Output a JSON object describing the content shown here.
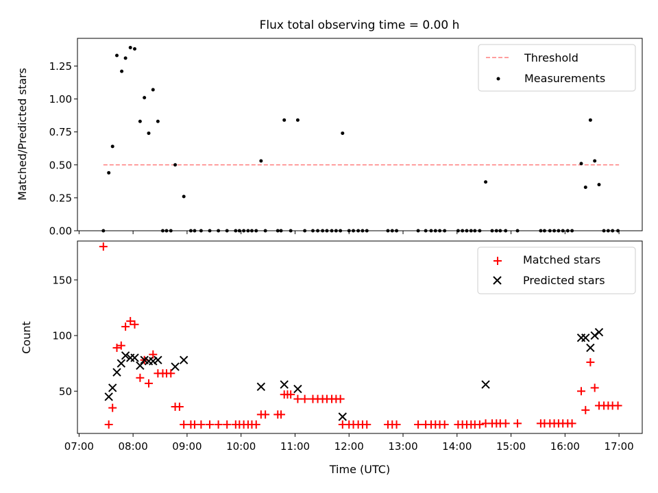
{
  "title": "Flux total observing time = 0.00 h",
  "colors": {
    "threshold": "#ff7f7f",
    "measurement": "#000000",
    "matched": "#ff0000",
    "predicted": "#000000"
  },
  "chart_data": [
    {
      "type": "scatter",
      "title": "Flux total observing time = 0.00 h",
      "xlabel": "",
      "ylabel": "Matched/Predicted stars",
      "xlim": [
        6.97,
        17.43
      ],
      "ylim": [
        0,
        1.46
      ],
      "yticks": [
        0.0,
        0.25,
        0.5,
        0.75,
        1.0,
        1.25
      ],
      "ytick_labels": [
        "0.00",
        "0.25",
        "0.50",
        "0.75",
        "1.00",
        "1.25"
      ],
      "legend": {
        "position": "top-right",
        "entries": [
          "Threshold",
          "Measurements"
        ]
      },
      "threshold": {
        "name": "Threshold",
        "x": [
          7.45,
          17.0
        ],
        "y": 0.5
      },
      "series": [
        {
          "name": "Measurements",
          "marker": "dot",
          "x": [
            7.45,
            7.55,
            7.62,
            7.7,
            7.79,
            7.86,
            7.95,
            8.03,
            8.13,
            8.21,
            8.29,
            8.37,
            8.46,
            8.55,
            8.62,
            8.7,
            8.78,
            8.94,
            9.07,
            9.14,
            9.26,
            9.42,
            9.58,
            9.74,
            9.9,
            9.97,
            10.05,
            10.13,
            10.2,
            10.28,
            10.37,
            10.45,
            10.68,
            10.74,
            10.8,
            10.92,
            11.05,
            11.18,
            11.33,
            11.42,
            11.51,
            11.59,
            11.68,
            11.76,
            11.84,
            11.88,
            12.0,
            12.08,
            12.17,
            12.25,
            12.33,
            12.72,
            12.8,
            12.88,
            13.28,
            13.42,
            13.52,
            13.6,
            13.68,
            13.77,
            14.02,
            14.1,
            14.18,
            14.26,
            14.33,
            14.42,
            14.53,
            14.65,
            14.73,
            14.8,
            14.9,
            15.12,
            15.55,
            15.62,
            15.72,
            15.8,
            15.88,
            15.96,
            16.05,
            16.13,
            16.3,
            16.38,
            16.47,
            16.55,
            16.63,
            16.72,
            16.8,
            16.88,
            16.98
          ],
          "y": [
            0.0,
            0.44,
            0.64,
            1.33,
            1.21,
            1.31,
            1.39,
            1.38,
            0.83,
            1.01,
            0.74,
            1.07,
            0.83,
            0.0,
            0.0,
            0.0,
            0.5,
            0.26,
            0.0,
            0.0,
            0.0,
            0.0,
            0.0,
            0.0,
            0.0,
            0.0,
            0.0,
            0.0,
            0.0,
            0.0,
            0.53,
            0.0,
            0.0,
            0.0,
            0.84,
            0.0,
            0.84,
            0.0,
            0.0,
            0.0,
            0.0,
            0.0,
            0.0,
            0.0,
            0.0,
            0.74,
            0.0,
            0.0,
            0.0,
            0.0,
            0.0,
            0.0,
            0.0,
            0.0,
            0.0,
            0.0,
            0.0,
            0.0,
            0.0,
            0.0,
            0.0,
            0.0,
            0.0,
            0.0,
            0.0,
            0.0,
            0.37,
            0.0,
            0.0,
            0.0,
            0.0,
            0.0,
            0.0,
            0.0,
            0.0,
            0.0,
            0.0,
            0.0,
            0.0,
            0.0,
            0.51,
            0.33,
            0.84,
            0.53,
            0.35,
            0.0,
            0.0,
            0.0,
            0.0
          ]
        }
      ]
    },
    {
      "type": "scatter",
      "title": "",
      "xlabel": "Time (UTC)",
      "ylabel": "Count",
      "xlim": [
        6.97,
        17.43
      ],
      "ylim": [
        12,
        185
      ],
      "yticks": [
        50,
        100,
        150
      ],
      "ytick_labels": [
        "50",
        "100",
        "150"
      ],
      "xticks": [
        7,
        8,
        9,
        10,
        11,
        12,
        13,
        14,
        15,
        16,
        17
      ],
      "xtick_labels": [
        "07:00",
        "08:00",
        "09:00",
        "10:00",
        "11:00",
        "12:00",
        "13:00",
        "14:00",
        "15:00",
        "16:00",
        "17:00"
      ],
      "legend": {
        "position": "top-right",
        "entries": [
          "Matched stars",
          "Predicted stars"
        ]
      },
      "series": [
        {
          "name": "Matched stars",
          "marker": "plus",
          "x": [
            7.45,
            7.55,
            7.62,
            7.7,
            7.78,
            7.86,
            7.95,
            8.03,
            8.13,
            8.21,
            8.29,
            8.37,
            8.46,
            8.55,
            8.62,
            8.7,
            8.78,
            8.86,
            8.94,
            9.07,
            9.14,
            9.26,
            9.42,
            9.58,
            9.74,
            9.9,
            9.97,
            10.05,
            10.13,
            10.2,
            10.28,
            10.37,
            10.45,
            10.68,
            10.74,
            10.8,
            10.86,
            10.92,
            11.05,
            11.18,
            11.33,
            11.42,
            11.51,
            11.59,
            11.68,
            11.76,
            11.84,
            11.88,
            12.0,
            12.08,
            12.17,
            12.25,
            12.33,
            12.72,
            12.8,
            12.88,
            13.28,
            13.42,
            13.52,
            13.6,
            13.68,
            13.77,
            14.02,
            14.1,
            14.18,
            14.26,
            14.33,
            14.42,
            14.53,
            14.65,
            14.73,
            14.8,
            14.9,
            15.12,
            15.55,
            15.62,
            15.72,
            15.8,
            15.88,
            15.96,
            16.05,
            16.13,
            16.3,
            16.38,
            16.47,
            16.55,
            16.63,
            16.72,
            16.8,
            16.88,
            16.98
          ],
          "y": [
            180,
            20,
            35,
            89,
            91,
            108,
            113,
            110,
            62,
            78,
            57,
            83,
            66,
            66,
            66,
            66,
            36,
            36,
            20,
            20,
            20,
            20,
            20,
            20,
            20,
            20,
            20,
            20,
            20,
            20,
            20,
            29,
            29,
            29,
            29,
            47,
            47,
            47,
            43,
            43,
            43,
            43,
            43,
            43,
            43,
            43,
            43,
            20,
            20,
            20,
            20,
            20,
            20,
            20,
            20,
            20,
            20,
            20,
            20,
            20,
            20,
            20,
            20,
            20,
            20,
            20,
            20,
            20,
            21,
            21,
            21,
            21,
            21,
            21,
            21,
            21,
            21,
            21,
            21,
            21,
            21,
            21,
            50,
            33,
            76,
            53,
            37,
            37,
            37,
            37,
            37
          ]
        },
        {
          "name": "Predicted stars",
          "marker": "x",
          "x": [
            7.55,
            7.62,
            7.7,
            7.78,
            7.86,
            7.95,
            8.03,
            8.13,
            8.21,
            8.29,
            8.37,
            8.46,
            8.78,
            8.94,
            10.37,
            10.8,
            11.05,
            11.88,
            14.53,
            16.3,
            16.38,
            16.47,
            16.55,
            16.63
          ],
          "y": [
            45,
            53,
            67,
            75,
            82,
            80,
            80,
            73,
            78,
            77,
            77,
            78,
            72,
            78,
            54,
            56,
            52,
            27,
            56,
            98,
            98,
            89,
            100,
            103
          ]
        }
      ]
    }
  ]
}
